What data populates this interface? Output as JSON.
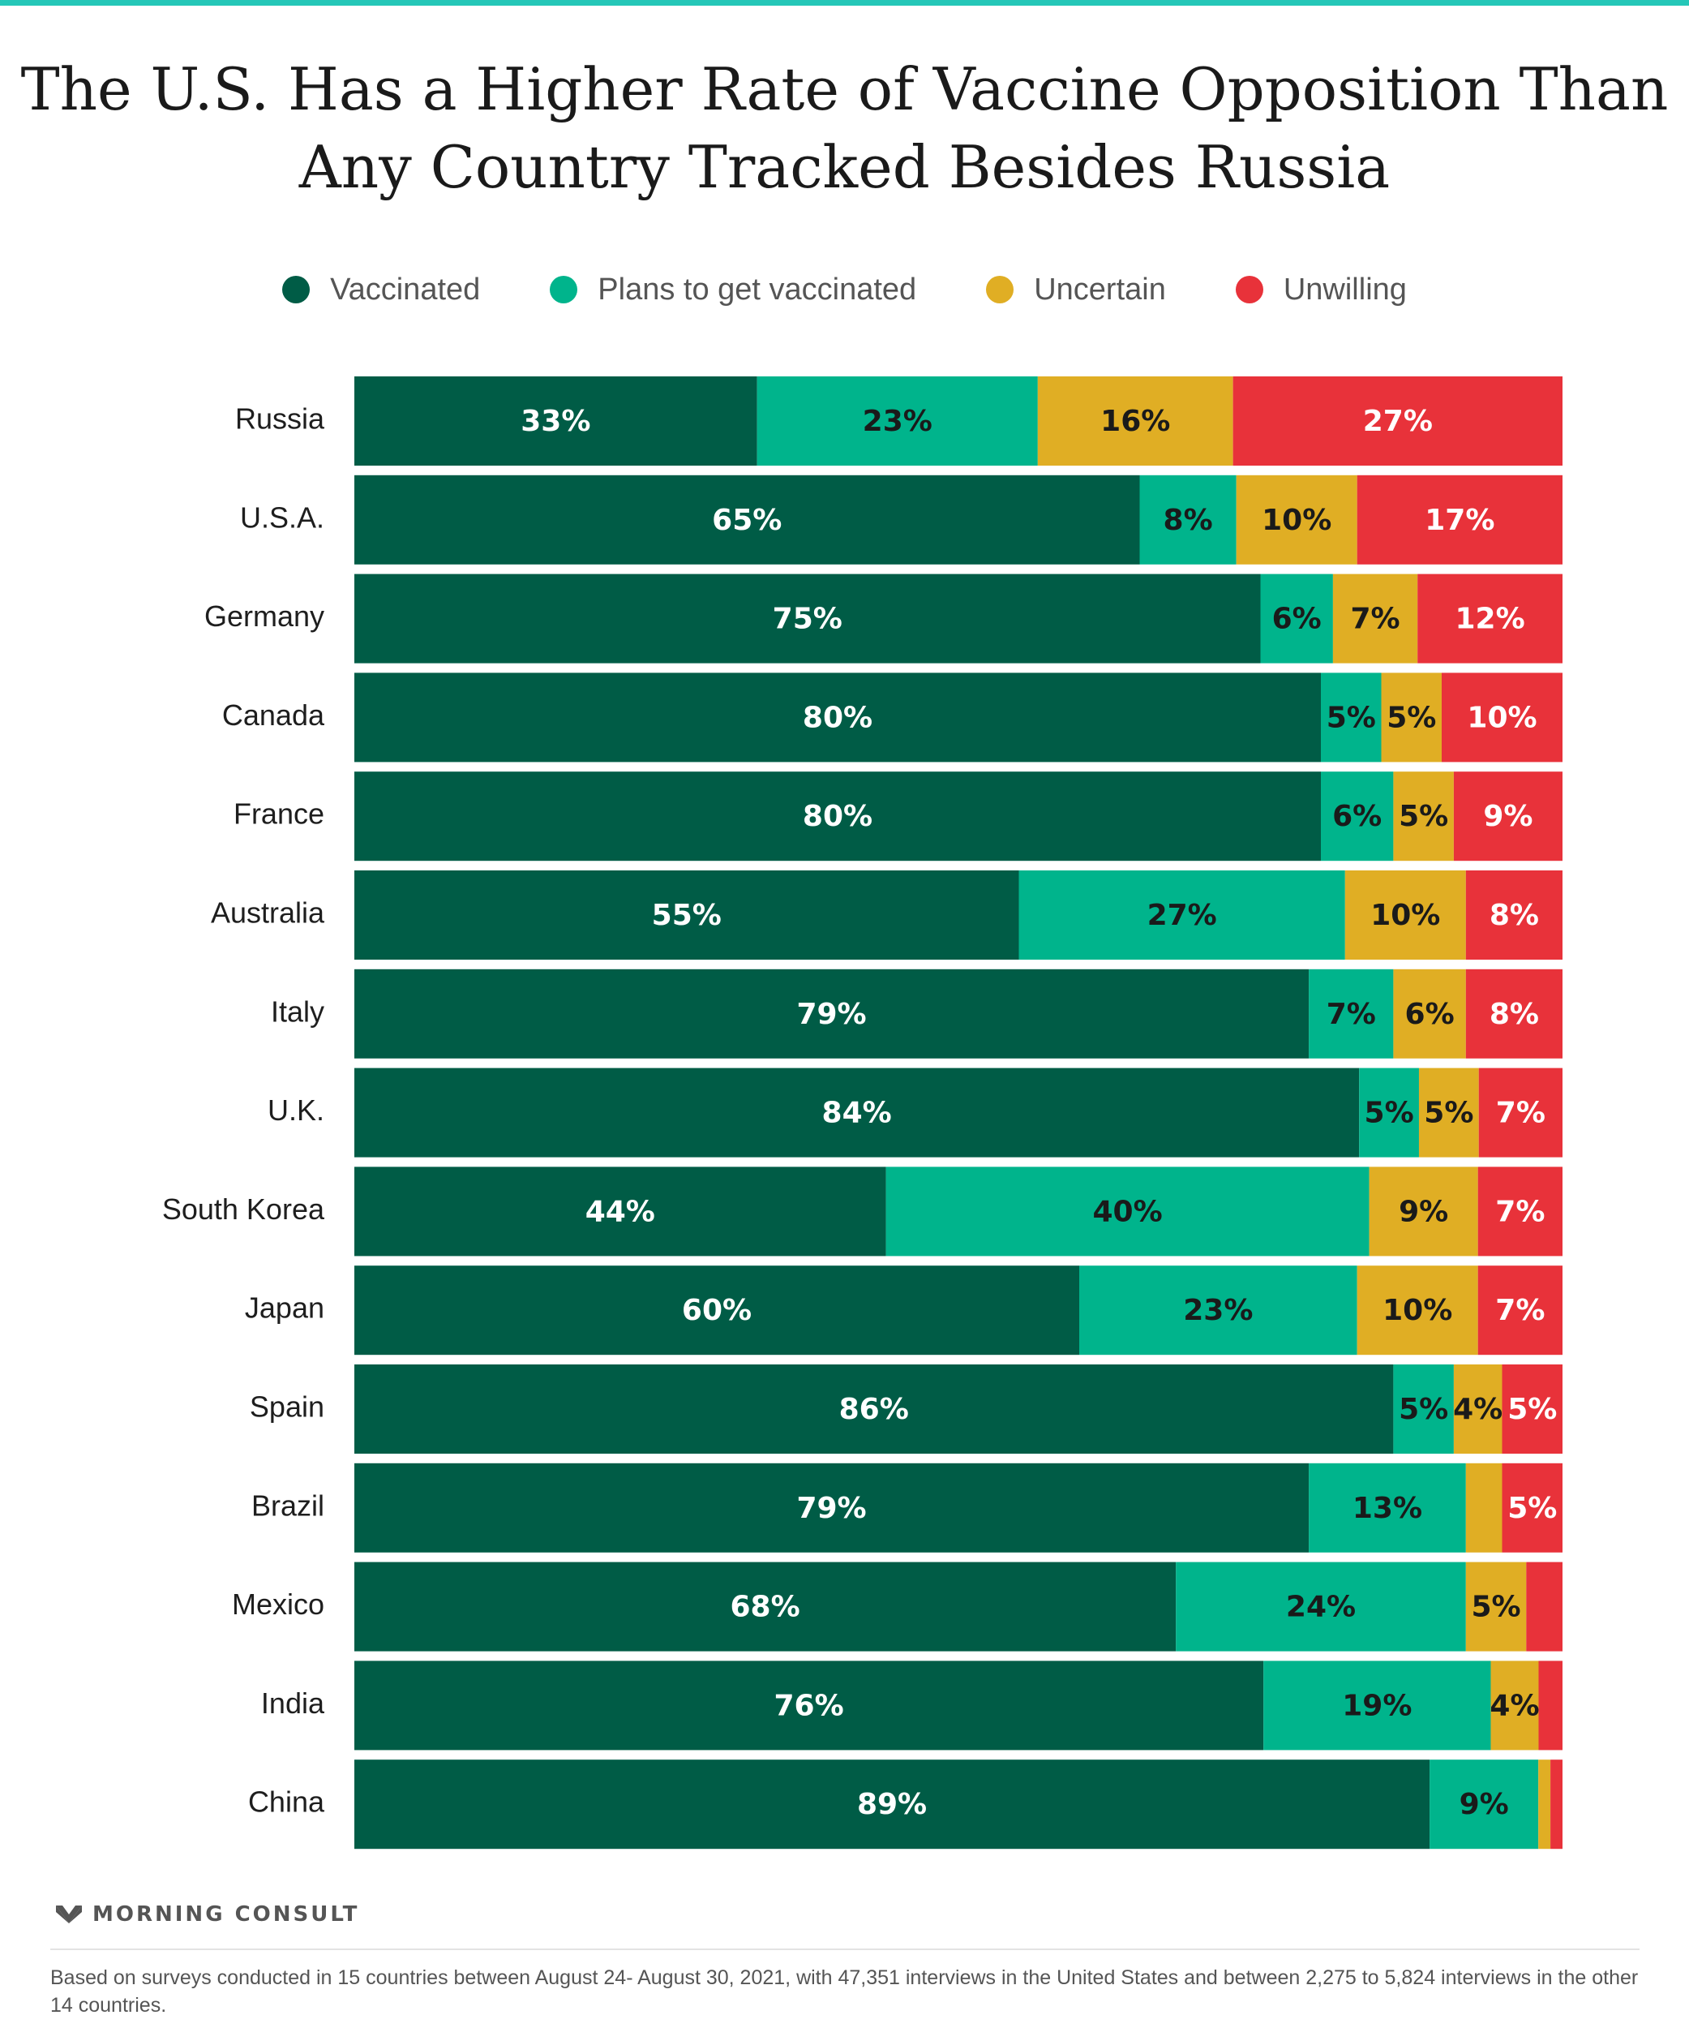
{
  "chart_data": {
    "type": "bar",
    "orientation": "horizontal",
    "stacked": true,
    "title": "The U.S. Has a Higher Rate of Vaccine Opposition Than Any Country Tracked Besides Russia",
    "title_lines": [
      "The U.S. Has a Higher Rate of Vaccine Opposition Than",
      "Any Country Tracked Besides Russia"
    ],
    "xlabel": "",
    "ylabel": "",
    "xlim": [
      0,
      100
    ],
    "grid": false,
    "legend_position": "top",
    "categories": [
      "Russia",
      "U.S.A.",
      "Germany",
      "Canada",
      "France",
      "Australia",
      "Italy",
      "U.K.",
      "South Korea",
      "Japan",
      "Spain",
      "Brazil",
      "Mexico",
      "India",
      "China"
    ],
    "series": [
      {
        "name": "Vaccinated",
        "color": "#005c46",
        "label_color": "#ffffff",
        "values": [
          33,
          65,
          75,
          80,
          80,
          55,
          79,
          84,
          44,
          60,
          86,
          79,
          68,
          76,
          89
        ],
        "labels": [
          "33%",
          "65%",
          "75%",
          "80%",
          "80%",
          "55%",
          "79%",
          "84%",
          "44%",
          "60%",
          "86%",
          "79%",
          "68%",
          "76%",
          "89%"
        ]
      },
      {
        "name": "Plans to get vaccinated",
        "color": "#00b48c",
        "label_color": "#1a1a1a",
        "values": [
          23,
          8,
          6,
          5,
          6,
          27,
          7,
          5,
          40,
          23,
          5,
          13,
          24,
          19,
          9
        ],
        "labels": [
          "23%",
          "8%",
          "6%",
          "5%",
          "6%",
          "27%",
          "7%",
          "5%",
          "40%",
          "23%",
          "5%",
          "13%",
          "24%",
          "19%",
          "9%"
        ]
      },
      {
        "name": "Uncertain",
        "color": "#e0ae24",
        "label_color": "#1a1a1a",
        "values": [
          16,
          10,
          7,
          5,
          5,
          10,
          6,
          5,
          9,
          10,
          4,
          3,
          5,
          4,
          1
        ],
        "labels": [
          "16%",
          "10%",
          "7%",
          "5%",
          "5%",
          "10%",
          "6%",
          "5%",
          "9%",
          "10%",
          "4%",
          "",
          "5%",
          "4%",
          ""
        ]
      },
      {
        "name": "Unwilling",
        "color": "#e8323a",
        "label_color": "#ffffff",
        "values": [
          27,
          17,
          12,
          10,
          9,
          8,
          8,
          7,
          7,
          7,
          5,
          5,
          3,
          2,
          1
        ],
        "labels": [
          "27%",
          "17%",
          "12%",
          "10%",
          "9%",
          "8%",
          "8%",
          "7%",
          "7%",
          "7%",
          "5%",
          "5%",
          "",
          "",
          ""
        ]
      }
    ]
  },
  "brand": {
    "name": "MORNING CONSULT",
    "logo_icon": "morning-consult-logo-icon"
  },
  "footnote": "Based on surveys conducted in 15 countries between August 24- August 30, 2021, with 47,351 interviews in the United States and between 2,275 to 5,824 interviews in the other 14 countries.",
  "colors": {
    "accent_rule": "#25c7b8"
  }
}
